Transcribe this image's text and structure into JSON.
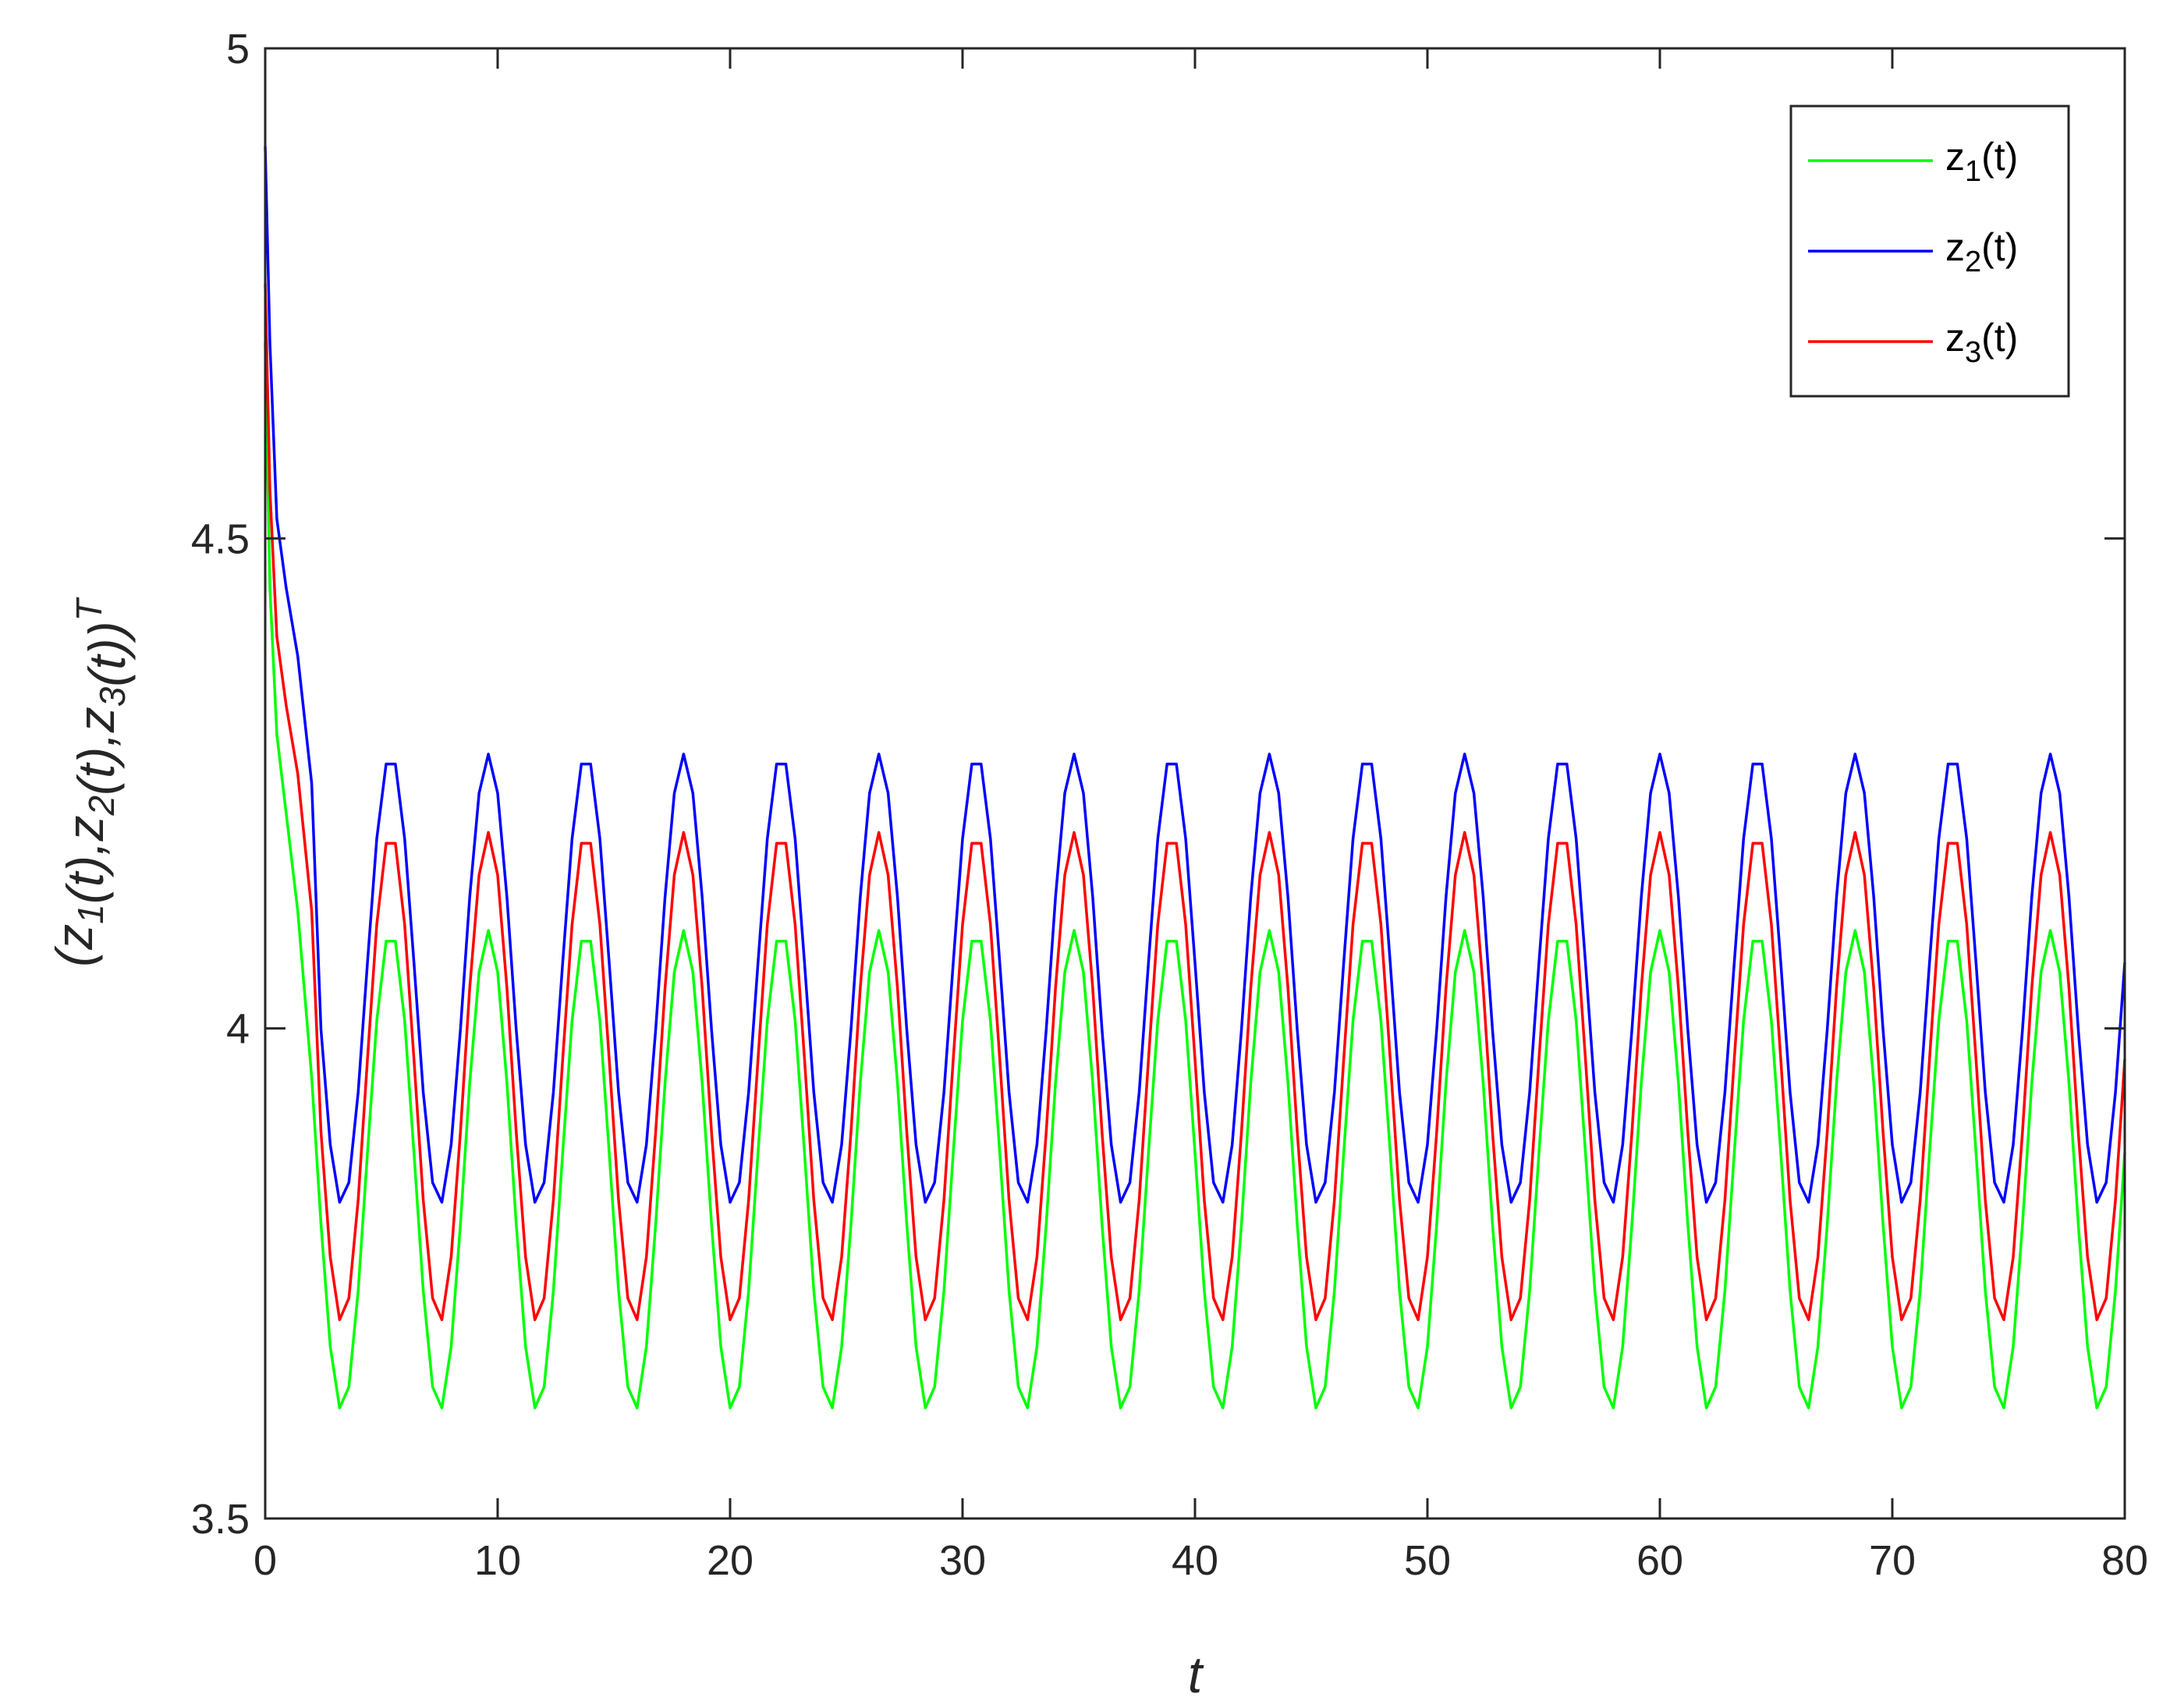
{
  "chart_data": {
    "type": "line",
    "xlabel": "t",
    "ylabel": {
      "parts": [
        {
          "text": "(z",
          "sub": "1"
        },
        {
          "text": "(t),z",
          "sub": "2"
        },
        {
          "text": "(t),z",
          "sub": "3"
        },
        {
          "text": "(t))",
          "sup": "T"
        }
      ]
    },
    "xlim": [
      0,
      80
    ],
    "ylim": [
      3.5,
      5
    ],
    "xticks": [
      "0",
      "10",
      "20",
      "30",
      "40",
      "50",
      "60",
      "70",
      "80"
    ],
    "yticks": [
      "3.5",
      "4",
      "4.5",
      "5"
    ],
    "grid": false,
    "legend_position": "top-right",
    "transient": {
      "x": [
        0,
        0.2,
        0.5,
        0.9,
        1.4,
        2.0
      ],
      "z1": [
        4.7,
        4.45,
        4.3,
        4.22,
        4.12,
        3.95
      ],
      "z2": [
        4.9,
        4.7,
        4.52,
        4.45,
        4.38,
        4.25
      ],
      "z3": [
        4.76,
        4.55,
        4.4,
        4.33,
        4.26,
        4.12
      ]
    },
    "periodic": {
      "period": 4.2,
      "x_end": 80,
      "phase_peak_x": 5.4
    },
    "series": [
      {
        "name": "z",
        "sub": "1",
        "suffix": "(t)",
        "color": "#00ff00",
        "min": 3.61,
        "max": 4.1
      },
      {
        "name": "z",
        "sub": "2",
        "suffix": "(t)",
        "color": "#0000ff",
        "min": 3.82,
        "max": 4.28
      },
      {
        "name": "z",
        "sub": "3",
        "suffix": "(t)",
        "color": "#ff0000",
        "min": 3.7,
        "max": 4.2
      }
    ]
  }
}
